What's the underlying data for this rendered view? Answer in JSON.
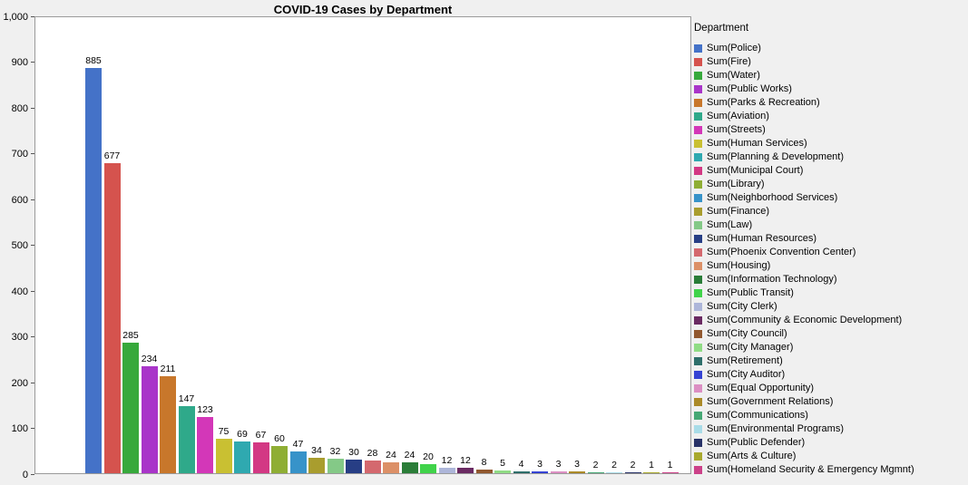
{
  "title": "COVID-19 Cases by Department",
  "legend_title": "Department",
  "y_axis": {
    "min": 0,
    "max": 1000,
    "ticks": [
      "0",
      "100",
      "200",
      "300",
      "400",
      "500",
      "600",
      "700",
      "800",
      "900",
      "1,000"
    ]
  },
  "chart_data": {
    "type": "bar",
    "title": "COVID-19 Cases by Department",
    "xlabel": "",
    "ylabel": "",
    "ylim": [
      0,
      1000
    ],
    "grid": false,
    "legend_position": "right",
    "categories": [
      "Police",
      "Fire",
      "Water",
      "Public Works",
      "Parks & Recreation",
      "Aviation",
      "Streets",
      "Human Services",
      "Planning & Development",
      "Municipal Court",
      "Library",
      "Neighborhood Services",
      "Finance",
      "Law",
      "Human Resources",
      "Phoenix Convention Center",
      "Housing",
      "Information Technology",
      "Public Transit",
      "City Clerk",
      "Community & Economic Development",
      "City Council",
      "City Manager",
      "Retirement",
      "City Auditor",
      "Equal Opportunity",
      "Government Relations",
      "Communications",
      "Environmental Programs",
      "Public Defender",
      "Arts & Culture",
      "Homeland Security & Emergency Mgmnt"
    ],
    "legend_labels": [
      "Sum(Police)",
      "Sum(Fire)",
      "Sum(Water)",
      "Sum(Public Works)",
      "Sum(Parks & Recreation)",
      "Sum(Aviation)",
      "Sum(Streets)",
      "Sum(Human Services)",
      "Sum(Planning & Development)",
      "Sum(Municipal Court)",
      "Sum(Library)",
      "Sum(Neighborhood Services)",
      "Sum(Finance)",
      "Sum(Law)",
      "Sum(Human Resources)",
      "Sum(Phoenix Convention Center)",
      "Sum(Housing)",
      "Sum(Information Technology)",
      "Sum(Public Transit)",
      "Sum(City Clerk)",
      "Sum(Community & Economic Development)",
      "Sum(City Council)",
      "Sum(City Manager)",
      "Sum(Retirement)",
      "Sum(City Auditor)",
      "Sum(Equal Opportunity)",
      "Sum(Government Relations)",
      "Sum(Communications)",
      "Sum(Environmental Programs)",
      "Sum(Public Defender)",
      "Sum(Arts & Culture)",
      "Sum(Homeland Security & Emergency Mgmnt)"
    ],
    "values": [
      885,
      677,
      285,
      234,
      211,
      147,
      123,
      75,
      69,
      67,
      60,
      47,
      34,
      32,
      30,
      28,
      24,
      24,
      20,
      12,
      12,
      8,
      5,
      4,
      3,
      3,
      3,
      2,
      2,
      2,
      1,
      1
    ],
    "colors": [
      "#4472c8",
      "#d5534e",
      "#37a93c",
      "#a935c9",
      "#c8772b",
      "#2fa98a",
      "#d337b8",
      "#c9c032",
      "#2fa9b0",
      "#d33884",
      "#8fae34",
      "#3793c9",
      "#a99d2e",
      "#84c987",
      "#273e85",
      "#d4686e",
      "#dc9067",
      "#2a7d38",
      "#40d34a",
      "#adb6d9",
      "#6a2a62",
      "#91582f",
      "#90dc85",
      "#2e6e6a",
      "#3543d3",
      "#dc8fc3",
      "#ab8a28",
      "#46a875",
      "#a9dce8",
      "#283268",
      "#a9a92e",
      "#cc4189"
    ]
  }
}
